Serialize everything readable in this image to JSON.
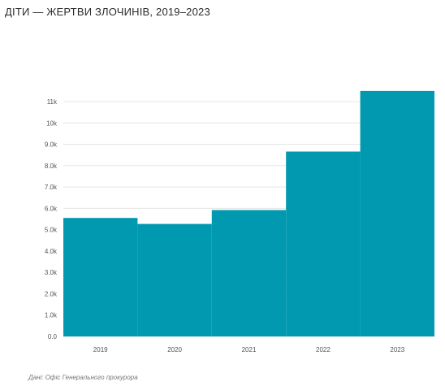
{
  "chart_data": {
    "type": "bar",
    "title": "ДІТИ — ЖЕРТВИ ЗЛОЧИНІВ, 2019–2023",
    "categories": [
      "2019",
      "2020",
      "2021",
      "2022",
      "2023"
    ],
    "values": [
      5550,
      5270,
      5920,
      8660,
      11500
    ],
    "y_ticks": [
      0,
      1000,
      2000,
      3000,
      4000,
      5000,
      6000,
      7000,
      8000,
      9000,
      10000,
      11000
    ],
    "y_tick_labels": [
      "0.0",
      "1.0k",
      "2.0k",
      "3.0k",
      "4.0k",
      "5.0k",
      "6.0k",
      "7.0k",
      "8.0k",
      "9.0k",
      "10k",
      "11k"
    ],
    "ylim": [
      0,
      11800
    ],
    "grid": true,
    "bar_color": "#0099b0",
    "grid_color": "#e4e4e4",
    "source": "Дані: Офіс Генерального прокурора"
  }
}
